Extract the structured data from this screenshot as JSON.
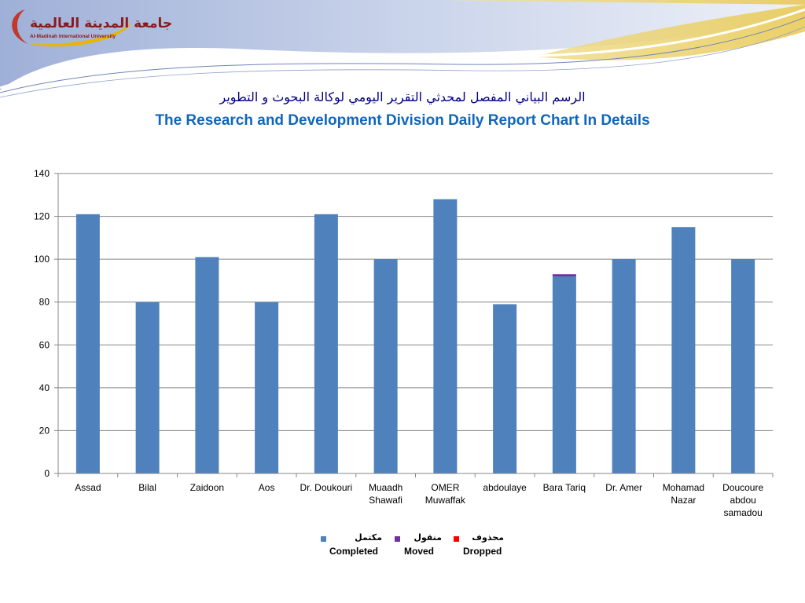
{
  "header": {
    "logo_ar": "جامعة المدينة العالمية",
    "logo_en": "Al-Madinah International University",
    "title_ar": "الرسم البياني المفصل لمحدثي التقرير اليومي لوكالة البحوث و التطوير",
    "title_en": "The Research and Development Division Daily Report Chart In Details"
  },
  "legend": [
    {
      "label_ar": "مكتمل",
      "label_en": "Completed",
      "color": "#4f81bd"
    },
    {
      "label_ar": "منقول",
      "label_en": "Moved",
      "color": "#7030a0"
    },
    {
      "label_ar": "محذوف",
      "label_en": "Dropped",
      "color": "#ff0000"
    }
  ],
  "chart_data": {
    "type": "bar",
    "stacked": true,
    "categories": [
      [
        "Assad"
      ],
      [
        "Bilal"
      ],
      [
        "Zaidoon"
      ],
      [
        "Aos"
      ],
      [
        "Dr. Doukouri"
      ],
      [
        "Muaadh",
        "Shawafi"
      ],
      [
        "OMER",
        "Muwaffak"
      ],
      [
        "abdoulaye"
      ],
      [
        "Bara Tariq"
      ],
      [
        "Dr. Amer"
      ],
      [
        "Mohamad",
        "Nazar"
      ],
      [
        "Doucoure",
        "abdou",
        "samadou"
      ]
    ],
    "series": [
      {
        "name": "Completed",
        "color": "#4f81bd",
        "values": [
          121,
          80,
          101,
          80,
          121,
          100,
          128,
          79,
          92,
          100,
          115,
          100
        ]
      },
      {
        "name": "Moved",
        "color": "#7030a0",
        "values": [
          0,
          0,
          0,
          0,
          0,
          0,
          0,
          0,
          1,
          0,
          0,
          0
        ]
      },
      {
        "name": "Dropped",
        "color": "#ff0000",
        "values": [
          0,
          0,
          0,
          0,
          0,
          0,
          0,
          0,
          0,
          0,
          0,
          0
        ]
      }
    ],
    "yticks": [
      0,
      20,
      40,
      60,
      80,
      100,
      120,
      140
    ],
    "ylim": [
      0,
      140
    ],
    "grid": true,
    "legend_position": "bottom"
  }
}
